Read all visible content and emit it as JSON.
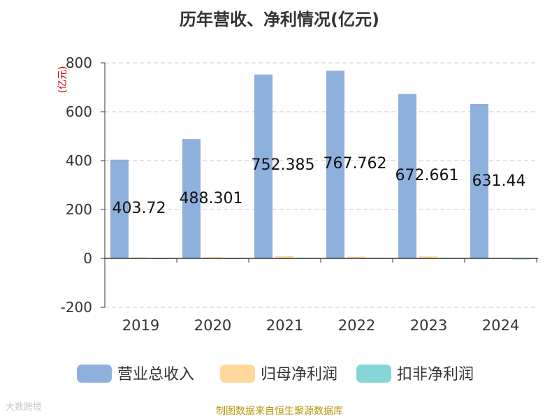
{
  "chart_data": {
    "type": "bar",
    "title": "历年营收、净利情况(亿元)",
    "ylabel": "(亿元)",
    "xlabel": "",
    "categories": [
      "2019",
      "2020",
      "2021",
      "2022",
      "2023",
      "2024"
    ],
    "series": [
      {
        "name": "营业总收入",
        "color": "#8eb0dc",
        "values": [
          403.72,
          488.301,
          752.385,
          767.762,
          672.661,
          631.44
        ],
        "labels": [
          "403.72",
          "488.301",
          "752.385",
          "767.762",
          "672.661",
          "631.44"
        ]
      },
      {
        "name": "归母净利润",
        "color": "#fdd89a",
        "values": [
          4,
          5,
          9,
          7,
          8,
          3
        ]
      },
      {
        "name": "扣非净利润",
        "color": "#86d5d9",
        "values": [
          1,
          1,
          3,
          2,
          3,
          -2
        ]
      }
    ],
    "ylim": [
      -200,
      800
    ],
    "yticks": [
      -200,
      0,
      200,
      400,
      600,
      800
    ],
    "grid": true,
    "legend_position": "bottom"
  },
  "footer": {
    "source": "制图数据来自恒生聚源数据库",
    "watermark": "大数跨境"
  }
}
